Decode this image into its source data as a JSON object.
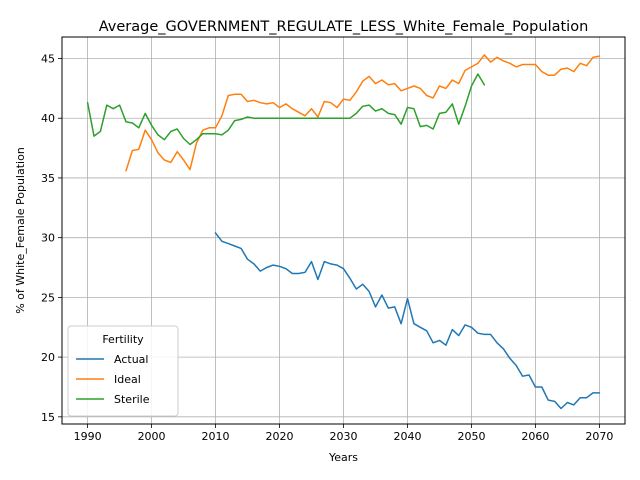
{
  "chart_data": {
    "type": "line",
    "title": "Average_GOVERNMENT_REGULATE_LESS_White_Female_Population",
    "xlabel": "Years",
    "ylabel": "% of White_Female Population",
    "xlim": [
      1986,
      2074
    ],
    "ylim": [
      14.4,
      46.8
    ],
    "xticks": [
      1990,
      2000,
      2010,
      2020,
      2030,
      2040,
      2050,
      2060,
      2070
    ],
    "yticks": [
      15,
      20,
      25,
      30,
      35,
      40,
      45
    ],
    "grid": true,
    "legend": {
      "title": "Fertility",
      "placement": "lower-left"
    },
    "series": [
      {
        "name": "Actual",
        "color": "#1f77b4",
        "x": [
          2010,
          2011,
          2012,
          2013,
          2014,
          2015,
          2016,
          2017,
          2018,
          2019,
          2020,
          2021,
          2022,
          2023,
          2024,
          2025,
          2026,
          2027,
          2028,
          2029,
          2030,
          2031,
          2032,
          2033,
          2034,
          2035,
          2036,
          2037,
          2038,
          2039,
          2040,
          2041,
          2042,
          2043,
          2044,
          2045,
          2046,
          2047,
          2048,
          2049,
          2050,
          2051,
          2052,
          2053,
          2054,
          2055,
          2056,
          2057,
          2058,
          2059,
          2060,
          2061,
          2062,
          2063,
          2064,
          2065,
          2066,
          2067,
          2068,
          2069,
          2070
        ],
        "y": [
          30.4,
          29.7,
          29.5,
          29.3,
          29.1,
          28.2,
          27.8,
          27.2,
          27.5,
          27.7,
          27.6,
          27.4,
          27.0,
          27.0,
          27.1,
          28.0,
          26.5,
          28.0,
          27.8,
          27.7,
          27.4,
          26.6,
          25.7,
          26.1,
          25.5,
          24.2,
          25.2,
          24.1,
          24.2,
          22.8,
          24.9,
          22.8,
          22.5,
          22.2,
          21.2,
          21.4,
          21.0,
          22.3,
          21.8,
          22.7,
          22.5,
          22.0,
          21.9,
          21.9,
          21.2,
          20.7,
          19.9,
          19.3,
          18.4,
          18.5,
          17.5,
          17.5,
          16.4,
          16.3,
          15.7,
          16.2,
          16.0,
          16.6,
          16.6,
          17.0,
          17.0
        ]
      },
      {
        "name": "Ideal",
        "color": "#ff7f0e",
        "x": [
          1996,
          1997,
          1998,
          1999,
          2000,
          2001,
          2002,
          2003,
          2004,
          2005,
          2006,
          2007,
          2008,
          2009,
          2010,
          2011,
          2012,
          2013,
          2014,
          2015,
          2016,
          2017,
          2018,
          2019,
          2020,
          2021,
          2022,
          2023,
          2024,
          2025,
          2026,
          2027,
          2028,
          2029,
          2030,
          2031,
          2032,
          2033,
          2034,
          2035,
          2036,
          2037,
          2038,
          2039,
          2040,
          2041,
          2042,
          2043,
          2044,
          2045,
          2046,
          2047,
          2048,
          2049,
          2050,
          2051,
          2052,
          2053,
          2054,
          2055,
          2056,
          2057,
          2058,
          2059,
          2060,
          2061,
          2062,
          2063,
          2064,
          2065,
          2066,
          2067,
          2068,
          2069,
          2070
        ],
        "y": [
          35.6,
          37.3,
          37.4,
          39.0,
          38.2,
          37.1,
          36.5,
          36.3,
          37.2,
          36.5,
          35.7,
          37.9,
          39.0,
          39.2,
          39.2,
          40.2,
          41.9,
          42.0,
          42.0,
          41.4,
          41.5,
          41.3,
          41.2,
          41.3,
          40.9,
          41.2,
          40.8,
          40.5,
          40.2,
          40.8,
          40.1,
          41.4,
          41.3,
          40.9,
          41.6,
          41.5,
          42.2,
          43.1,
          43.5,
          42.9,
          43.2,
          42.8,
          42.9,
          42.3,
          42.5,
          42.7,
          42.5,
          41.9,
          41.7,
          42.7,
          42.5,
          43.2,
          42.9,
          44.0,
          44.3,
          44.6,
          45.3,
          44.7,
          45.1,
          44.8,
          44.6,
          44.3,
          44.5,
          44.5,
          44.5,
          43.9,
          43.6,
          43.6,
          44.1,
          44.2,
          43.9,
          44.6,
          44.4,
          45.1,
          45.2
        ]
      },
      {
        "name": "Sterile",
        "color": "#2ca02c",
        "x": [
          1990,
          1991,
          1992,
          1993,
          1994,
          1995,
          1996,
          1997,
          1998,
          1999,
          2000,
          2001,
          2002,
          2003,
          2004,
          2005,
          2006,
          2007,
          2008,
          2009,
          2010,
          2011,
          2012,
          2013,
          2014,
          2015,
          2016,
          2017,
          2018,
          2019,
          2020,
          2021,
          2022,
          2023,
          2024,
          2025,
          2026,
          2027,
          2028,
          2029,
          2030,
          2031,
          2032,
          2033,
          2034,
          2035,
          2036,
          2037,
          2038,
          2039,
          2040,
          2041,
          2042,
          2043,
          2044,
          2045,
          2046,
          2047,
          2048,
          2049,
          2050,
          2051,
          2052
        ],
        "y": [
          41.3,
          38.5,
          38.9,
          41.1,
          40.8,
          41.1,
          39.7,
          39.6,
          39.2,
          40.4,
          39.4,
          38.6,
          38.2,
          38.9,
          39.1,
          38.3,
          37.8,
          38.2,
          38.7,
          38.7,
          38.7,
          38.6,
          39.0,
          39.8,
          39.9,
          40.1,
          40.0,
          40.0,
          40.0,
          40.0,
          40.0,
          40.0,
          40.0,
          40.0,
          40.0,
          40.0,
          40.0,
          40.0,
          40.0,
          40.0,
          40.0,
          40.0,
          40.4,
          41.0,
          41.1,
          40.6,
          40.8,
          40.4,
          40.3,
          39.5,
          40.9,
          40.8,
          39.3,
          39.4,
          39.1,
          40.4,
          40.5,
          41.2,
          39.5,
          41.0,
          42.7,
          43.7,
          42.8
        ]
      }
    ]
  }
}
